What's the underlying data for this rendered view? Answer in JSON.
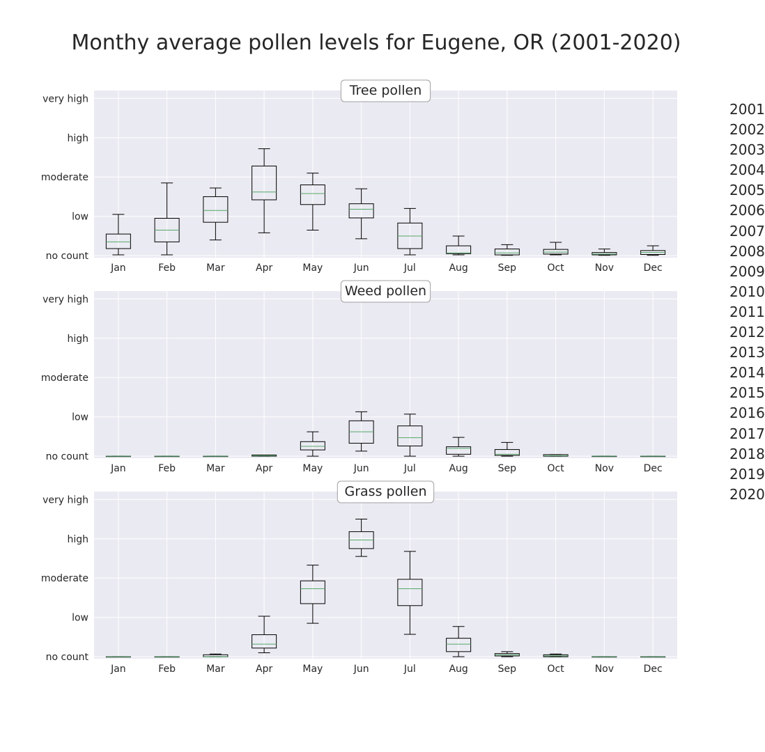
{
  "title": "Monthy average pollen levels for Eugene, OR (2001-2020)",
  "legend": [
    "2001",
    "2002",
    "2003",
    "2004",
    "2005",
    "2006",
    "2007",
    "2008",
    "2009",
    "2010",
    "2011",
    "2012",
    "2013",
    "2014",
    "2015",
    "2016",
    "2017",
    "2018",
    "2019",
    "2020"
  ],
  "colors": {
    "background": "#eaeaf2",
    "grid": "#ffffff",
    "median": "#55a868",
    "box": "#000000",
    "text": "#262626"
  },
  "chart_data": [
    {
      "type": "box",
      "title": "Tree pollen",
      "categories": [
        "Jan",
        "Feb",
        "Mar",
        "Apr",
        "May",
        "Jun",
        "Jul",
        "Aug",
        "Sep",
        "Oct",
        "Nov",
        "Dec"
      ],
      "ylim": [
        -0.05,
        4.2
      ],
      "yticks": [
        0,
        1,
        2,
        3,
        4
      ],
      "ytick_labels": [
        "no count",
        "low",
        "moderate",
        "high",
        "very high"
      ],
      "grid": true,
      "boxes": [
        {
          "min": 0.02,
          "q1": 0.18,
          "median": 0.35,
          "q3": 0.55,
          "max": 1.05
        },
        {
          "min": 0.02,
          "q1": 0.35,
          "median": 0.65,
          "q3": 0.95,
          "max": 1.85
        },
        {
          "min": 0.4,
          "q1": 0.85,
          "median": 1.15,
          "q3": 1.5,
          "max": 1.72
        },
        {
          "min": 0.58,
          "q1": 1.42,
          "median": 1.62,
          "q3": 2.28,
          "max": 2.72
        },
        {
          "min": 0.65,
          "q1": 1.3,
          "median": 1.58,
          "q3": 1.8,
          "max": 2.1
        },
        {
          "min": 0.43,
          "q1": 0.96,
          "median": 1.18,
          "q3": 1.32,
          "max": 1.7
        },
        {
          "min": 0.02,
          "q1": 0.18,
          "median": 0.5,
          "q3": 0.83,
          "max": 1.2
        },
        {
          "min": 0.02,
          "q1": 0.05,
          "median": 0.07,
          "q3": 0.25,
          "max": 0.5
        },
        {
          "min": 0.01,
          "q1": 0.02,
          "median": 0.07,
          "q3": 0.17,
          "max": 0.28
        },
        {
          "min": 0.02,
          "q1": 0.04,
          "median": 0.09,
          "q3": 0.16,
          "max": 0.34
        },
        {
          "min": 0.01,
          "q1": 0.02,
          "median": 0.04,
          "q3": 0.08,
          "max": 0.17
        },
        {
          "min": 0.01,
          "q1": 0.03,
          "median": 0.08,
          "q3": 0.13,
          "max": 0.25
        }
      ]
    },
    {
      "type": "box",
      "title": "Weed pollen",
      "categories": [
        "Jan",
        "Feb",
        "Mar",
        "Apr",
        "May",
        "Jun",
        "Jul",
        "Aug",
        "Sep",
        "Oct",
        "Nov",
        "Dec"
      ],
      "ylim": [
        -0.05,
        4.2
      ],
      "yticks": [
        0,
        1,
        2,
        3,
        4
      ],
      "ytick_labels": [
        "no count",
        "low",
        "moderate",
        "high",
        "very high"
      ],
      "grid": true,
      "boxes": [
        {
          "min": 0.0,
          "q1": 0.0,
          "median": 0.0,
          "q3": 0.0,
          "max": 0.0
        },
        {
          "min": 0.0,
          "q1": 0.0,
          "median": 0.0,
          "q3": 0.0,
          "max": 0.0
        },
        {
          "min": 0.0,
          "q1": 0.0,
          "median": 0.0,
          "q3": 0.0,
          "max": 0.0
        },
        {
          "min": 0.0,
          "q1": 0.0,
          "median": 0.01,
          "q3": 0.03,
          "max": 0.03
        },
        {
          "min": 0.0,
          "q1": 0.16,
          "median": 0.25,
          "q3": 0.37,
          "max": 0.62
        },
        {
          "min": 0.13,
          "q1": 0.33,
          "median": 0.62,
          "q3": 0.9,
          "max": 1.13
        },
        {
          "min": 0.0,
          "q1": 0.26,
          "median": 0.47,
          "q3": 0.77,
          "max": 1.07
        },
        {
          "min": 0.0,
          "q1": 0.05,
          "median": 0.2,
          "q3": 0.24,
          "max": 0.48
        },
        {
          "min": 0.0,
          "q1": 0.02,
          "median": 0.05,
          "q3": 0.17,
          "max": 0.35
        },
        {
          "min": 0.0,
          "q1": 0.0,
          "median": 0.01,
          "q3": 0.04,
          "max": 0.04
        },
        {
          "min": 0.0,
          "q1": 0.0,
          "median": 0.0,
          "q3": 0.0,
          "max": 0.0
        },
        {
          "min": 0.0,
          "q1": 0.0,
          "median": 0.0,
          "q3": 0.0,
          "max": 0.0
        }
      ]
    },
    {
      "type": "box",
      "title": "Grass pollen",
      "categories": [
        "Jan",
        "Feb",
        "Mar",
        "Apr",
        "May",
        "Jun",
        "Jul",
        "Aug",
        "Sep",
        "Oct",
        "Nov",
        "Dec"
      ],
      "ylim": [
        -0.05,
        4.2
      ],
      "yticks": [
        0,
        1,
        2,
        3,
        4
      ],
      "ytick_labels": [
        "no count",
        "low",
        "moderate",
        "high",
        "very high"
      ],
      "grid": true,
      "boxes": [
        {
          "min": 0.0,
          "q1": 0.0,
          "median": 0.0,
          "q3": 0.0,
          "max": 0.0
        },
        {
          "min": 0.0,
          "q1": 0.0,
          "median": 0.0,
          "q3": 0.0,
          "max": 0.0
        },
        {
          "min": 0.0,
          "q1": 0.0,
          "median": 0.0,
          "q3": 0.05,
          "max": 0.07
        },
        {
          "min": 0.1,
          "q1": 0.22,
          "median": 0.32,
          "q3": 0.56,
          "max": 1.03
        },
        {
          "min": 0.85,
          "q1": 1.35,
          "median": 1.73,
          "q3": 1.93,
          "max": 2.33
        },
        {
          "min": 2.55,
          "q1": 2.75,
          "median": 2.97,
          "q3": 3.18,
          "max": 3.5
        },
        {
          "min": 0.57,
          "q1": 1.3,
          "median": 1.73,
          "q3": 1.97,
          "max": 2.68
        },
        {
          "min": 0.0,
          "q1": 0.13,
          "median": 0.32,
          "q3": 0.47,
          "max": 0.77
        },
        {
          "min": 0.0,
          "q1": 0.02,
          "median": 0.05,
          "q3": 0.08,
          "max": 0.13
        },
        {
          "min": 0.0,
          "q1": 0.0,
          "median": 0.02,
          "q3": 0.05,
          "max": 0.07
        },
        {
          "min": 0.0,
          "q1": 0.0,
          "median": 0.0,
          "q3": 0.0,
          "max": 0.0
        },
        {
          "min": 0.0,
          "q1": 0.0,
          "median": 0.0,
          "q3": 0.0,
          "max": 0.0
        }
      ]
    }
  ]
}
